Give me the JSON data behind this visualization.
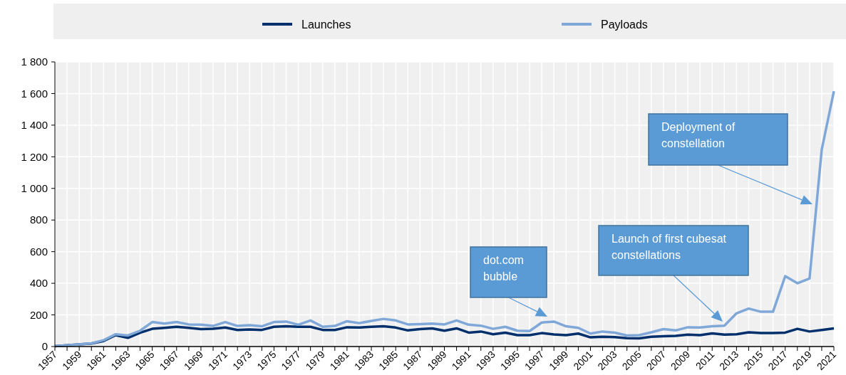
{
  "chart_data": {
    "type": "line",
    "x": [
      1957,
      1958,
      1959,
      1960,
      1961,
      1962,
      1963,
      1964,
      1965,
      1966,
      1967,
      1968,
      1969,
      1970,
      1971,
      1972,
      1973,
      1974,
      1975,
      1976,
      1977,
      1978,
      1979,
      1980,
      1981,
      1982,
      1983,
      1984,
      1985,
      1986,
      1987,
      1988,
      1989,
      1990,
      1991,
      1992,
      1993,
      1994,
      1995,
      1996,
      1997,
      1998,
      1999,
      2000,
      2001,
      2002,
      2003,
      2004,
      2005,
      2006,
      2007,
      2008,
      2009,
      2010,
      2011,
      2012,
      2013,
      2014,
      2015,
      2016,
      2017,
      2018,
      2019,
      2020,
      2021
    ],
    "series": [
      {
        "name": "Launches",
        "color": "#002f6c",
        "values": [
          2,
          8,
          14,
          19,
          35,
          72,
          55,
          87,
          112,
          118,
          125,
          118,
          110,
          112,
          120,
          105,
          108,
          105,
          125,
          128,
          125,
          125,
          105,
          105,
          122,
          120,
          125,
          128,
          120,
          102,
          110,
          115,
          100,
          115,
          88,
          95,
          78,
          88,
          72,
          72,
          85,
          77,
          72,
          82,
          58,
          62,
          60,
          53,
          52,
          62,
          65,
          68,
          75,
          72,
          83,
          75,
          78,
          90,
          85,
          85,
          88,
          112,
          95,
          105,
          115
        ]
      },
      {
        "name": "Payloads",
        "color": "#7fa8d9",
        "values": [
          2,
          8,
          14,
          20,
          40,
          78,
          70,
          100,
          155,
          145,
          155,
          140,
          138,
          130,
          155,
          130,
          135,
          128,
          155,
          158,
          138,
          165,
          125,
          130,
          160,
          148,
          162,
          175,
          165,
          140,
          142,
          145,
          140,
          165,
          138,
          132,
          112,
          125,
          100,
          98,
          152,
          158,
          128,
          118,
          82,
          95,
          88,
          70,
          72,
          90,
          110,
          102,
          122,
          120,
          128,
          132,
          210,
          240,
          220,
          220,
          445,
          400,
          430,
          1245,
          1615
        ]
      }
    ],
    "xlim": [
      1957,
      2021
    ],
    "xticks": [
      1957,
      {
        "value": 1958,
        "label": null
      },
      1959,
      {
        "value": 1960,
        "label": null
      },
      1961,
      {
        "value": 1962,
        "label": null
      },
      1963,
      {
        "value": 1964,
        "label": null
      },
      1965,
      {
        "value": 1966,
        "label": null
      },
      1967,
      {
        "value": 1968,
        "label": null
      },
      1969,
      {
        "value": 1970,
        "label": null
      },
      1971,
      {
        "value": 1972,
        "label": null
      },
      1973,
      {
        "value": 1974,
        "label": null
      },
      1975,
      {
        "value": 1976,
        "label": null
      },
      1977,
      {
        "value": 1978,
        "label": null
      },
      1979,
      {
        "value": 1980,
        "label": null
      },
      1981,
      {
        "value": 1982,
        "label": null
      },
      1983,
      {
        "value": 1984,
        "label": null
      },
      1985,
      {
        "value": 1986,
        "label": null
      },
      1987,
      {
        "value": 1988,
        "label": null
      },
      1989,
      {
        "value": 1990,
        "label": null
      },
      1991,
      {
        "value": 1992,
        "label": null
      },
      1993,
      {
        "value": 1994,
        "label": null
      },
      1995,
      {
        "value": 1996,
        "label": null
      },
      1997,
      {
        "value": 1998,
        "label": null
      },
      1999,
      {
        "value": 2000,
        "label": null
      },
      2001,
      {
        "value": 2002,
        "label": null
      },
      2003,
      {
        "value": 2004,
        "label": null
      },
      2005,
      {
        "value": 2006,
        "label": null
      },
      2007,
      {
        "value": 2008,
        "label": null
      },
      2009,
      {
        "value": 2010,
        "label": null
      },
      2011,
      {
        "value": 2012,
        "label": null
      },
      2013,
      {
        "value": 2014,
        "label": null
      },
      2015,
      {
        "value": 2016,
        "label": null
      },
      2017,
      {
        "value": 2018,
        "label": null
      },
      2019,
      {
        "value": 2020,
        "label": null
      },
      2021
    ],
    "ylim": [
      0,
      1800
    ],
    "yticks": [
      0,
      200,
      400,
      600,
      800,
      {
        "value": 1000,
        "label": "1 000"
      },
      {
        "value": 1200,
        "label": "1 200"
      },
      {
        "value": 1400,
        "label": "1 400"
      },
      {
        "value": 1600,
        "label": "1 600"
      },
      {
        "value": 1800,
        "label": "1 800"
      }
    ],
    "grid": true,
    "legend": "top",
    "annotations": [
      "dot.com\nbubble",
      "Launch of first cubesat\nconstellations",
      "Deployment of\nconstellation"
    ]
  }
}
